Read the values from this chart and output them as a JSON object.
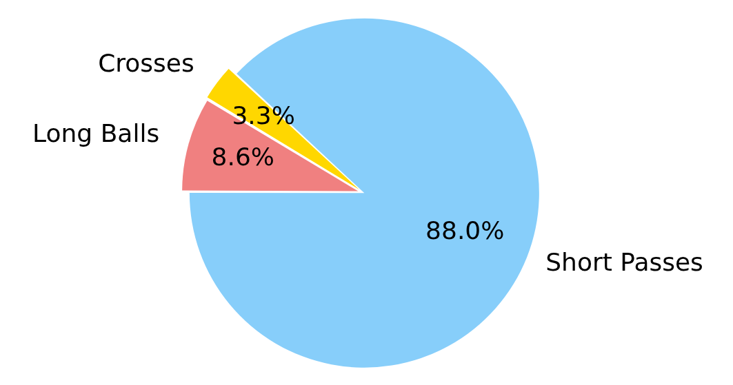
{
  "chart_data": {
    "type": "pie",
    "categories": [
      "Short Passes",
      "Long Balls",
      "Crosses"
    ],
    "values": [
      88.0,
      8.6,
      3.3
    ],
    "colors": [
      "#87cefa",
      "#f08080",
      "#ffd700"
    ],
    "value_labels": [
      "88.0%",
      "8.6%",
      "3.3%"
    ]
  }
}
